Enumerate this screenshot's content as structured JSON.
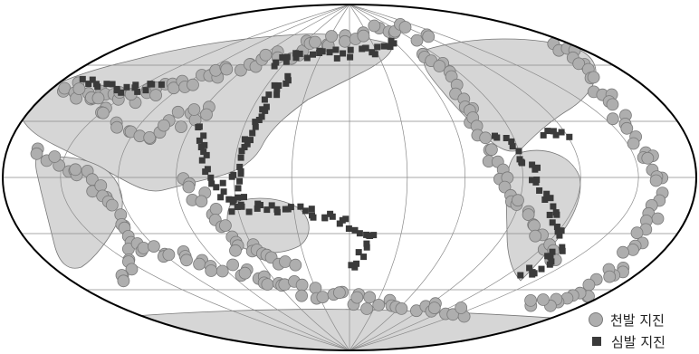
{
  "map": {
    "projection": "mollweide",
    "colors": {
      "land": "#d6d6d6",
      "ocean": "#ffffff",
      "grid": "#8a8a8a",
      "outline": "#000000",
      "shallow": "#aeaeae",
      "shallow_stroke": "#7a7a7a",
      "deep": "#3a3a3a"
    }
  },
  "legend": {
    "shallow_label": "천발 지진",
    "deep_label": "심발 지진"
  }
}
